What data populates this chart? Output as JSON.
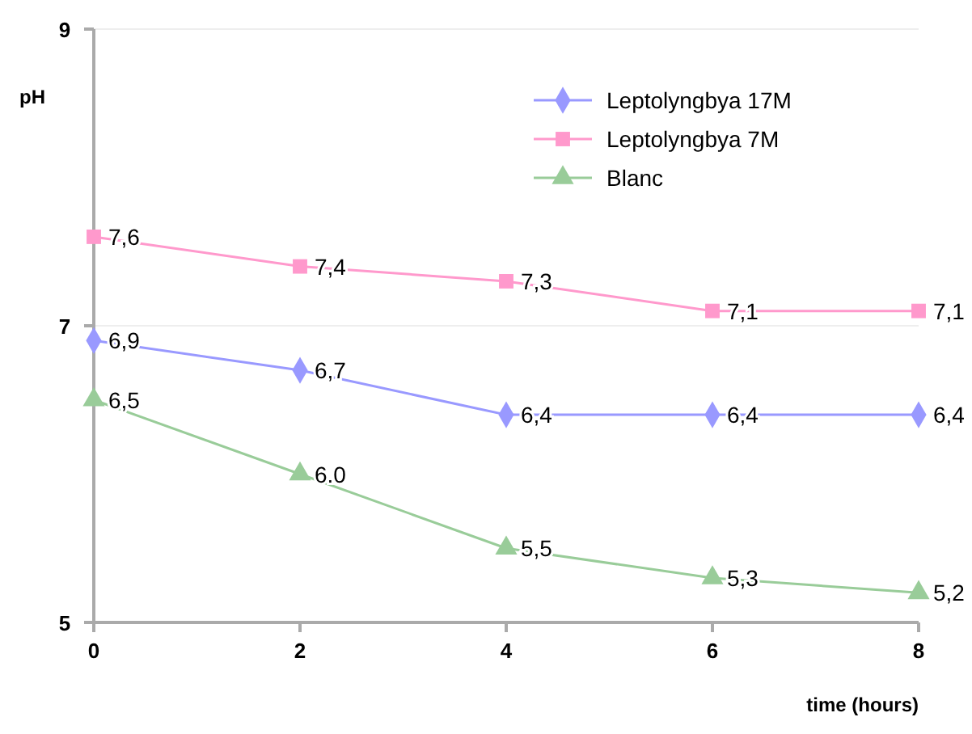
{
  "chart_data": {
    "type": "line",
    "xlabel": "time (hours)",
    "ylabel": "pH",
    "x": [
      0,
      2,
      4,
      6,
      8
    ],
    "xlim": [
      0,
      8
    ],
    "xticks": [
      0,
      2,
      4,
      6,
      8
    ],
    "ylim": [
      5,
      9
    ],
    "yticks": [
      5,
      7,
      9
    ],
    "grid": "y",
    "legend": "top right",
    "series": [
      {
        "name": "Leptolyngbya 17M",
        "color": "#9999ff",
        "marker": "diamond",
        "values": [
          6.9,
          6.7,
          6.4,
          6.4,
          6.4
        ],
        "value_labels": [
          "6,9",
          "6,7",
          "6,4",
          "6,4",
          "6,4"
        ]
      },
      {
        "name": "Leptolyngbya 7M",
        "color": "#ff99cc",
        "marker": "square",
        "values": [
          7.6,
          7.4,
          7.3,
          7.1,
          7.1
        ],
        "value_labels": [
          "7,6",
          "7,4",
          "7,3",
          "7,1",
          "7,1"
        ]
      },
      {
        "name": "Blanc",
        "color": "#99cc99",
        "marker": "triangle",
        "values": [
          6.5,
          6.0,
          5.5,
          5.3,
          5.2
        ],
        "value_labels": [
          "6,5",
          "6.0",
          "5,5",
          "5,3",
          "5,2"
        ]
      }
    ]
  }
}
